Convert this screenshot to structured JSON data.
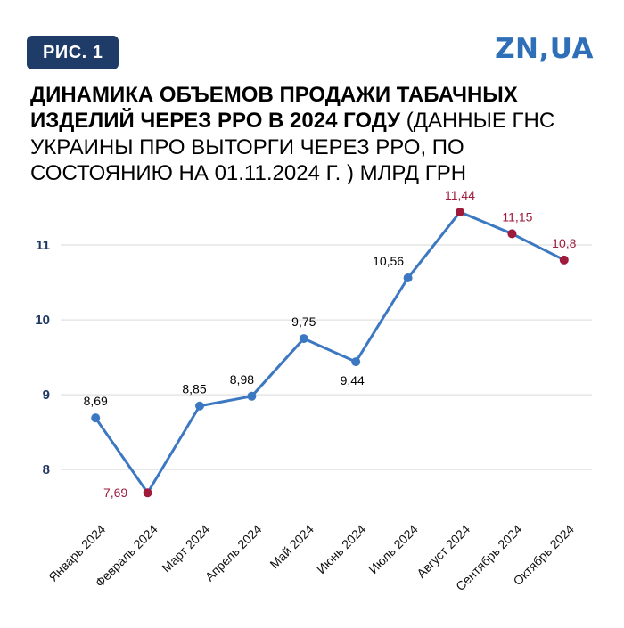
{
  "header": {
    "figure_label": "РИС. 1",
    "logo_text": "ZN,UA"
  },
  "title": {
    "bold": "ДИНАМИКА ОБЪЕМОВ ПРОДАЖИ ТАБАЧНЫХ ИЗДЕЛИЙ ЧЕРЕЗ РРО В 2024 ГОДУ ",
    "regular": "(ДАННЫЕ ГНС УКРАИНЫ ПРО ВЫТОРГИ ЧЕРЕЗ РРО, ПО СОСТОЯНИЮ НА 01.11.2024 Г. ) МЛРД ГРН"
  },
  "chart_data": {
    "type": "line",
    "title": "ДИНАМИКА ОБЪЕМОВ ПРОДАЖИ ТАБАЧНЫХ ИЗДЕЛИЙ ЧЕРЕЗ РРО В 2024 ГОДУ (ДАННЫЕ ГНС УКРАИНЫ ПРО ВЫТОРГИ ЧЕРЕЗ РРО, ПО СОСТОЯНИЮ НА 01.11.2024 Г. ) МЛРД ГРН",
    "unit": "млрд грн",
    "categories": [
      "Январь 2024",
      "Февраль 2024",
      "Март 2024",
      "Апрель 2024",
      "Май 2024",
      "Июнь 2024",
      "Июль 2024",
      "Август 2024",
      "Сентябрь 2024",
      "Октябрь 2024"
    ],
    "values": [
      8.69,
      7.69,
      8.85,
      8.98,
      9.75,
      9.44,
      10.56,
      11.44,
      11.15,
      10.8
    ],
    "point_labels": [
      "8,69",
      "7,69",
      "8,85",
      "8,98",
      "9,75",
      "9,44",
      "10,56",
      "11,44",
      "11,15",
      "10,8"
    ],
    "highlight_indices": [
      1,
      7,
      8,
      9
    ],
    "yticks": [
      8,
      9,
      10,
      11
    ],
    "ylim": [
      7.55,
      11.75
    ],
    "grid": true,
    "legend": "none",
    "colors": {
      "line": "#3c78c2",
      "point": "#3c78c2",
      "highlight": "#9e1b3c",
      "label": "#000000",
      "tick": "#1f3864",
      "grid": "#d9d9d9",
      "xlabel": "#111111"
    },
    "layout": {
      "label_dx": [
        0,
        -36,
        -6,
        -11,
        0,
        -4,
        -22,
        0,
        6,
        0
      ],
      "label_dy": [
        -14,
        5,
        -14,
        -14,
        -14,
        26,
        -14,
        -14,
        -14,
        -14
      ]
    }
  }
}
